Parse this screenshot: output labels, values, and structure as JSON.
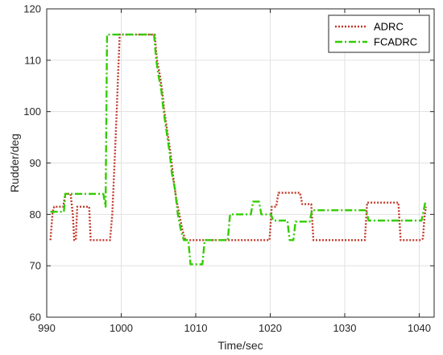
{
  "chart_data": {
    "type": "line",
    "title": "",
    "xlabel": "Time/sec",
    "ylabel": "Rudder/deg",
    "xlim": [
      990,
      1042
    ],
    "ylim": [
      60,
      120
    ],
    "xticks": [
      "990",
      "1000",
      "1010",
      "1020",
      "1030",
      "1040"
    ],
    "yticks": [
      "60",
      "70",
      "80",
      "90",
      "100",
      "110",
      "120"
    ],
    "grid": true,
    "legend_position": "top-right",
    "series": [
      {
        "name": "ADRC",
        "color": "#c0392b",
        "line_style": "dotted",
        "x": [
          990.5,
          990.8,
          991,
          992.2,
          992.5,
          993.2,
          993.5,
          993.7,
          993.9,
          994.1,
          994.3,
          994.6,
          995.7,
          995.9,
          998.5,
          998.8,
          999.1,
          999.4,
          999.6,
          999.8,
          1004.5,
          1004.8,
          1005.2,
          1005.5,
          1005.8,
          1006.2,
          1006.6,
          1007.0,
          1007.4,
          1007.8,
          1008.2,
          1008.6,
          1008.9,
          1009.2,
          1019.9,
          1020.2,
          1020.8,
          1021.1,
          1024.0,
          1024.3,
          1025.5,
          1025.8,
          1032.7,
          1033.0,
          1037.2,
          1037.5,
          1040.2,
          1040.5,
          1040.7,
          1040.9
        ],
        "y": [
          75,
          80.5,
          81.5,
          81.5,
          84,
          84,
          80,
          75,
          75,
          81.5,
          81.5,
          81.5,
          81.5,
          75,
          75,
          80,
          90,
          100,
          108,
          115,
          115,
          110,
          107,
          104,
          100,
          96,
          92,
          87,
          83,
          80,
          77,
          75,
          75,
          75,
          75,
          81.5,
          81.5,
          84.2,
          84.2,
          82,
          82,
          75,
          75,
          82.3,
          82.3,
          75,
          75,
          75.3,
          79.5,
          81.5
        ]
      },
      {
        "name": "FCADRC",
        "color": "#33cc00",
        "line_style": "dashdot",
        "x": [
          990.5,
          991.5,
          992.3,
          992.5,
          997.6,
          997.9,
          998.1,
          1004.4,
          1004.7,
          1005.0,
          1005.4,
          1005.7,
          1006.1,
          1006.5,
          1006.8,
          1007.2,
          1007.6,
          1008.0,
          1008.4,
          1008.7,
          1009.0,
          1009.3,
          1009.6,
          1010.9,
          1011.2,
          1014.3,
          1014.6,
          1017.4,
          1017.7,
          1018.5,
          1018.8,
          1020.1,
          1020.4,
          1022.3,
          1022.6,
          1023.1,
          1023.4,
          1025.3,
          1025.6,
          1032.9,
          1033.2,
          1040.3,
          1040.6,
          1040.8
        ],
        "y": [
          80.5,
          80.5,
          80.5,
          84,
          84,
          81.5,
          115,
          115,
          110,
          107,
          104,
          100,
          96,
          92,
          88,
          85,
          80,
          77,
          75,
          75,
          75,
          70.3,
          70.3,
          70.3,
          75,
          75,
          80,
          80,
          82.5,
          82.5,
          80,
          80,
          78.8,
          78.8,
          75,
          75,
          78.6,
          78.6,
          80.8,
          80.8,
          78.8,
          78.8,
          80.8,
          82.3
        ]
      }
    ]
  }
}
